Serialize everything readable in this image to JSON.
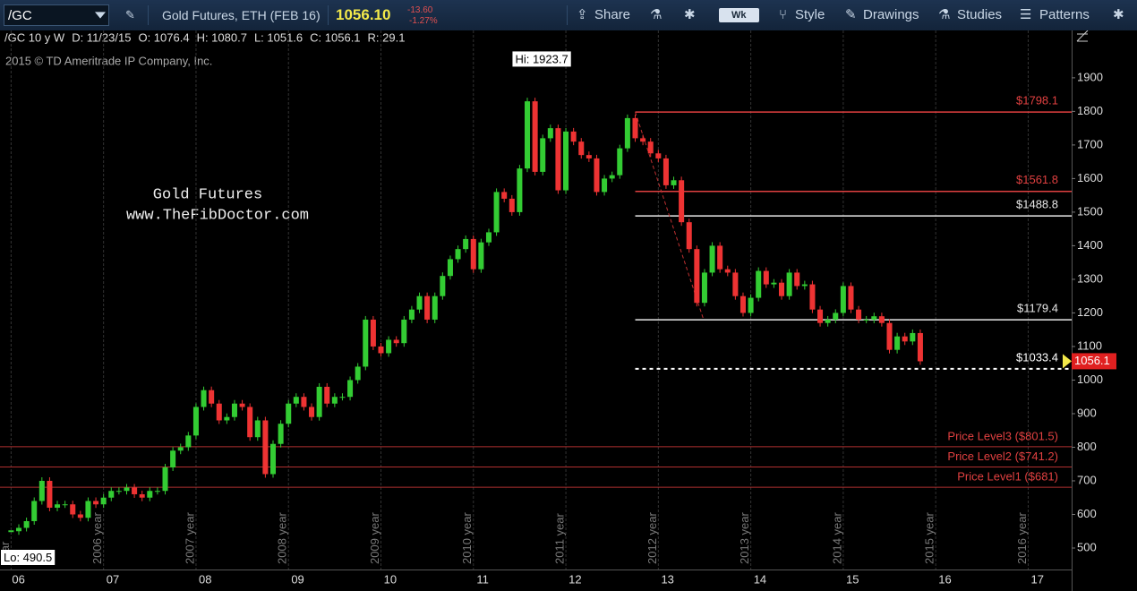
{
  "toolbar": {
    "symbol": "/GC",
    "description": "Gold Futures, ETH (FEB 16)",
    "last": "1056.10",
    "change": "-13.60",
    "change_pct": "-1.27%",
    "buttons": [
      "Share",
      "Wk",
      "Style",
      "Drawings",
      "Studies",
      "Patterns"
    ]
  },
  "info": [
    "/GC 10 y W",
    "D: 11/23/15",
    "O: 1076.4",
    "H: 1080.7",
    "L: 1051.6",
    "C: 1056.1",
    "R: 29.1"
  ],
  "copyright": "2015 © TD Ameritrade IP Company, Inc.",
  "watermark": [
    "Gold Futures",
    "www.TheFibDoctor.com"
  ],
  "chart_data": {
    "type": "candlestick",
    "x_start": 2006,
    "x_step": 0.08333,
    "values": [
      550,
      560,
      580,
      640,
      700,
      620,
      630,
      630,
      600,
      590,
      640,
      630,
      650,
      670,
      670,
      680,
      660,
      650,
      670,
      670,
      740,
      790,
      800,
      835,
      920,
      970,
      930,
      880,
      890,
      930,
      920,
      830,
      880,
      720,
      810,
      870,
      930,
      950,
      920,
      890,
      980,
      930,
      950,
      950,
      1000,
      1040,
      1180,
      1100,
      1080,
      1120,
      1110,
      1180,
      1210,
      1250,
      1180,
      1250,
      1310,
      1360,
      1390,
      1420,
      1330,
      1410,
      1440,
      1560,
      1540,
      1500,
      1630,
      1830,
      1620,
      1720,
      1750,
      1565,
      1740,
      1710,
      1670,
      1660,
      1560,
      1600,
      1610,
      1690,
      1780,
      1720,
      1710,
      1675,
      1660,
      1580,
      1595,
      1470,
      1390,
      1230,
      1320,
      1400,
      1330,
      1320,
      1250,
      1200,
      1245,
      1325,
      1285,
      1290,
      1250,
      1320,
      1280,
      1285,
      1210,
      1170,
      1180,
      1200,
      1280,
      1210,
      1180,
      1180,
      1190,
      1170,
      1090,
      1130,
      1115,
      1140,
      1056
    ],
    "up_color": "#33cc33",
    "down_color": "#ee3333",
    "xlim": [
      2005.88,
      2017.47
    ],
    "ylim": [
      436,
      1985
    ],
    "yticks": [
      500,
      600,
      700,
      800,
      900,
      1000,
      1100,
      1200,
      1300,
      1400,
      1500,
      1600,
      1700,
      1800,
      1900
    ],
    "xticks": [
      {
        "value": 2006.08,
        "label": "06"
      },
      {
        "value": 2007.1,
        "label": "07"
      },
      {
        "value": 2008.1,
        "label": "08"
      },
      {
        "value": 2009.1,
        "label": "09"
      },
      {
        "value": 2010.1,
        "label": "10"
      },
      {
        "value": 2011.1,
        "label": "11"
      },
      {
        "value": 2012.1,
        "label": "12"
      },
      {
        "value": 2013.1,
        "label": "13"
      },
      {
        "value": 2014.1,
        "label": "14"
      },
      {
        "value": 2015.1,
        "label": "15"
      },
      {
        "value": 2016.1,
        "label": "16"
      },
      {
        "value": 2017.1,
        "label": "17"
      }
    ],
    "year_lines": [
      {
        "value": 2006,
        "label": "year"
      },
      {
        "value": 2007,
        "label": "2006 year"
      },
      {
        "value": 2008,
        "label": "2007 year"
      },
      {
        "value": 2009,
        "label": "2008 year"
      },
      {
        "value": 2010,
        "label": "2009 year"
      },
      {
        "value": 2011,
        "label": "2010 year"
      },
      {
        "value": 2012,
        "label": "2011 year"
      },
      {
        "value": 2013,
        "label": "2012 year"
      },
      {
        "value": 2014,
        "label": "2013 year"
      },
      {
        "value": 2015,
        "label": "2014 year"
      },
      {
        "value": 2016,
        "label": "2015 year"
      },
      {
        "value": 2017,
        "label": "2016 year"
      }
    ],
    "fib_levels": [
      {
        "value": 1798.1,
        "label": "$1798.1",
        "color": "#e04040"
      },
      {
        "value": 1561.8,
        "label": "$1561.8",
        "color": "#e04040"
      },
      {
        "value": 1488.8,
        "label": "$1488.8",
        "color": "#e8e8e8"
      },
      {
        "value": 1179.4,
        "label": "$1179.4",
        "color": "#e8e8e8"
      },
      {
        "value": 1033.4,
        "label": "$1033.4",
        "color": "#ffffff"
      }
    ],
    "price_levels": [
      {
        "value": 801.5,
        "label": "Price Level3 ($801.5)"
      },
      {
        "value": 741.2,
        "label": "Price Level2 ($741.2)"
      },
      {
        "value": 681,
        "label": "Price Level1 ($681)"
      }
    ],
    "high": {
      "value": 1923.7,
      "label": "Hi: 1923.7"
    },
    "low": {
      "value": 490.5,
      "label": "Lo: 490.5"
    },
    "last_tag": {
      "value": 1056.1,
      "label": "1056.1"
    }
  }
}
